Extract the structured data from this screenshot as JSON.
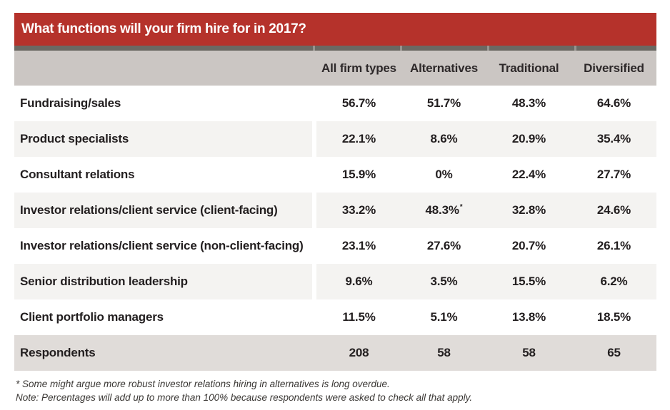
{
  "chart_data": {
    "type": "table",
    "title": "What functions will your firm hire for in 2017?",
    "columns": [
      "All firm types",
      "Alternatives",
      "Traditional",
      "Diversified"
    ],
    "rows": [
      {
        "label": "Fundraising/sales",
        "values": [
          "56.7%",
          "51.7%",
          "48.3%",
          "64.6%"
        ]
      },
      {
        "label": "Product specialists",
        "values": [
          "22.1%",
          "8.6%",
          "20.9%",
          "35.4%"
        ]
      },
      {
        "label": "Consultant relations",
        "values": [
          "15.9%",
          "0%",
          "22.4%",
          "27.7%"
        ]
      },
      {
        "label": "Investor relations/client service (client-facing)",
        "values": [
          "33.2%",
          {
            "v": "48.3%",
            "sup": "*"
          },
          "32.8%",
          "24.6%"
        ]
      },
      {
        "label": "Investor relations/client service (non-client-facing)",
        "values": [
          "23.1%",
          "27.6%",
          "20.7%",
          "26.1%"
        ]
      },
      {
        "label": "Senior distribution leadership",
        "values": [
          "9.6%",
          "3.5%",
          "15.5%",
          "6.2%"
        ]
      },
      {
        "label": "Client portfolio managers",
        "values": [
          "11.5%",
          "5.1%",
          "13.8%",
          "18.5%"
        ]
      },
      {
        "label": "Respondents",
        "values": [
          "208",
          "58",
          "58",
          "65"
        ],
        "total": true
      }
    ],
    "legend_position": "none",
    "grid": false
  },
  "footnotes": [
    "* Some might argue more robust investor relations hiring in alternatives is long overdue.",
    "Note: Percentages will add up to more than 100% because respondents were asked to check all that apply."
  ],
  "colors": {
    "banner_red": "#b5322b",
    "divider_strip": "#6b6862",
    "divider_notch": "#97948f",
    "header_row_bg": "#cbc6c3",
    "stripe_row_bg": "#f4f3f1",
    "total_row_bg": "#e0dcd9",
    "text": "#221e1f",
    "footnote_text": "#3a3734"
  }
}
